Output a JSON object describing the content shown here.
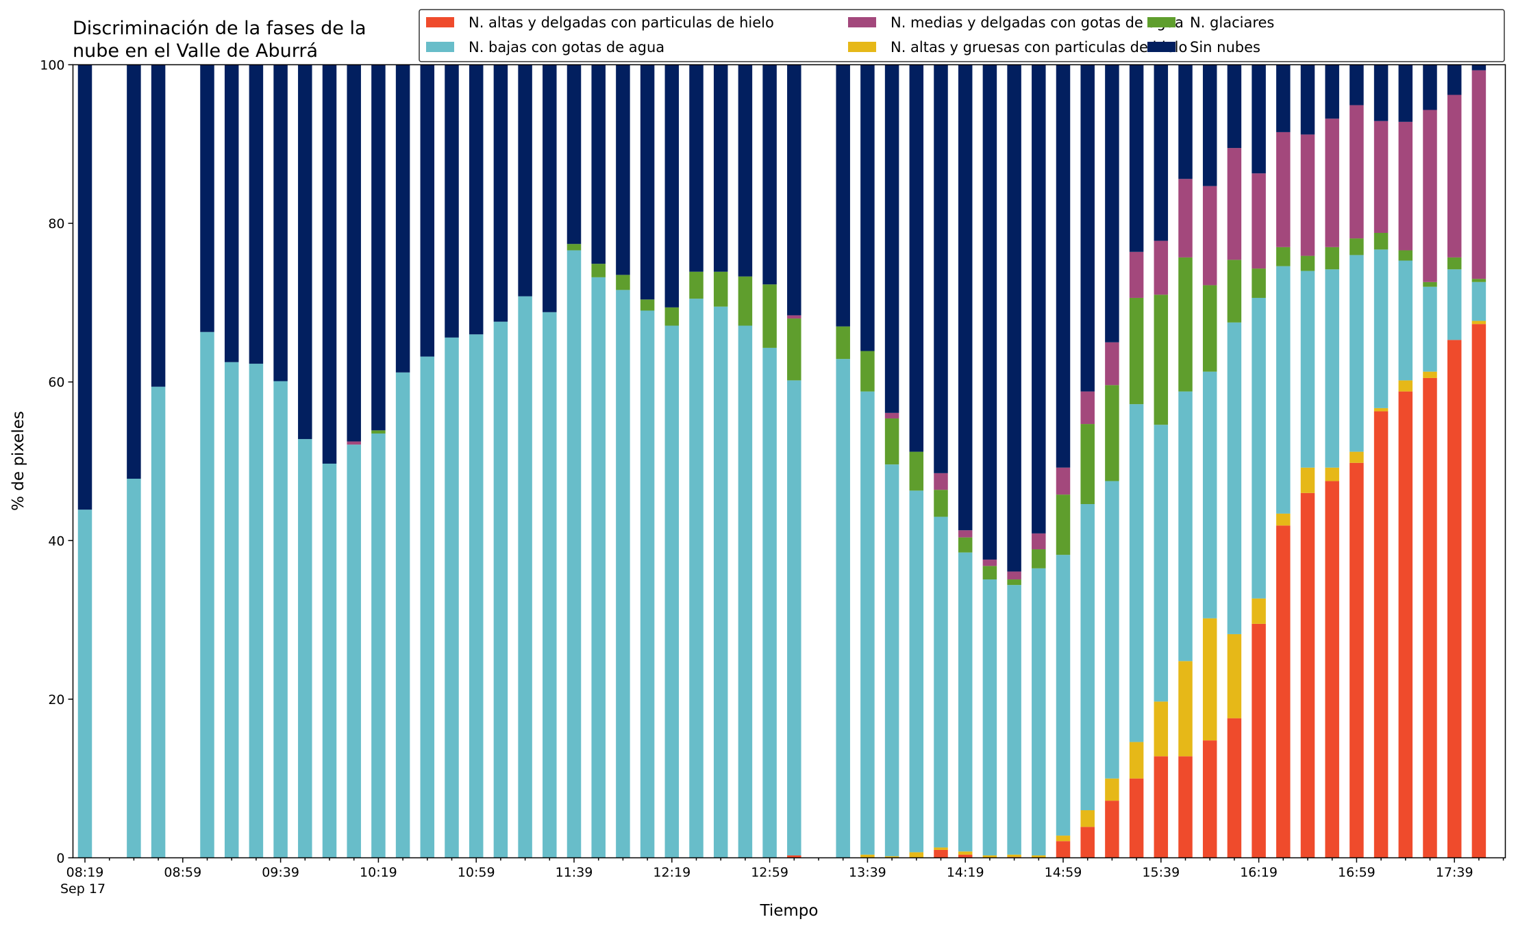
{
  "chart_data": {
    "type": "bar",
    "stacked": true,
    "title_lines": [
      "Discriminación de la fases de la",
      "nube en el Valle de Aburrá"
    ],
    "xlabel": "Tiempo",
    "ylabel": "% de pixeles",
    "ylim": [
      0,
      100
    ],
    "yticks": [
      0,
      20,
      40,
      60,
      80,
      100
    ],
    "x_step_minutes": 10,
    "x_start": "08:19",
    "x_end": "17:49",
    "date_label": "Sep 17",
    "xtick_labels": [
      "08:19",
      "08:59",
      "09:39",
      "10:19",
      "10:59",
      "11:39",
      "12:19",
      "12:59",
      "13:39",
      "14:19",
      "14:59",
      "15:39",
      "16:19",
      "16:59",
      "17:39"
    ],
    "legend_position": "top-right",
    "grid": false,
    "series": [
      {
        "name": "N. altas y delgadas con particulas de hielo",
        "color": "#ef4b2c"
      },
      {
        "name": "N. altas y gruesas con particulas de hielo",
        "color": "#e6b818"
      },
      {
        "name": "N. bajas con gotas de agua",
        "color": "#68bdc9"
      },
      {
        "name": "N. glaciares",
        "color": "#5f9e2d"
      },
      {
        "name": "N. medias y delgadas con gotas de agua",
        "color": "#a3487c"
      },
      {
        "name": "Sin nubes",
        "color": "#021f5f"
      }
    ],
    "legend_order": [
      0,
      2,
      4,
      1,
      3,
      5
    ],
    "bars": [
      {
        "time": "08:19",
        "values": [
          0,
          0,
          43.9,
          0,
          0,
          56.1
        ]
      },
      {
        "time": "08:39",
        "values": [
          0,
          0,
          47.8,
          0,
          0,
          52.2
        ]
      },
      {
        "time": "08:49",
        "values": [
          0,
          0,
          59.4,
          0,
          0,
          40.6
        ]
      },
      {
        "time": "09:09",
        "values": [
          0,
          0,
          66.3,
          0,
          0,
          33.7
        ]
      },
      {
        "time": "09:19",
        "values": [
          0,
          0,
          62.5,
          0,
          0,
          37.5
        ]
      },
      {
        "time": "09:29",
        "values": [
          0,
          0,
          62.3,
          0,
          0,
          37.7
        ]
      },
      {
        "time": "09:39",
        "values": [
          0,
          0,
          60.1,
          0,
          0,
          39.9
        ]
      },
      {
        "time": "09:49",
        "values": [
          0,
          0,
          52.8,
          0,
          0,
          47.2
        ]
      },
      {
        "time": "09:59",
        "values": [
          0,
          0,
          49.7,
          0,
          0,
          50.3
        ]
      },
      {
        "time": "10:09",
        "values": [
          0,
          0,
          52.1,
          0,
          0.4,
          47.5
        ]
      },
      {
        "time": "10:19",
        "values": [
          0,
          0,
          53.5,
          0.4,
          0,
          46.1
        ]
      },
      {
        "time": "10:29",
        "values": [
          0,
          0,
          61.2,
          0,
          0,
          38.8
        ]
      },
      {
        "time": "10:39",
        "values": [
          0,
          0,
          63.2,
          0,
          0,
          36.8
        ]
      },
      {
        "time": "10:49",
        "values": [
          0,
          0,
          65.6,
          0,
          0,
          34.4
        ]
      },
      {
        "time": "10:59",
        "values": [
          0,
          0,
          66.0,
          0,
          0,
          34.0
        ]
      },
      {
        "time": "11:09",
        "values": [
          0,
          0,
          67.6,
          0,
          0,
          32.4
        ]
      },
      {
        "time": "11:19",
        "values": [
          0,
          0,
          70.8,
          0,
          0,
          29.2
        ]
      },
      {
        "time": "11:29",
        "values": [
          0,
          0,
          68.8,
          0,
          0,
          31.2
        ]
      },
      {
        "time": "11:39",
        "values": [
          0,
          0,
          76.6,
          0.8,
          0,
          22.6
        ]
      },
      {
        "time": "11:49",
        "values": [
          0,
          0,
          73.2,
          1.7,
          0,
          25.1
        ]
      },
      {
        "time": "11:59",
        "values": [
          0,
          0,
          71.6,
          1.9,
          0,
          26.5
        ]
      },
      {
        "time": "12:09",
        "values": [
          0,
          0,
          69.0,
          1.4,
          0,
          29.6
        ]
      },
      {
        "time": "12:19",
        "values": [
          0,
          0,
          67.1,
          2.3,
          0,
          30.6
        ]
      },
      {
        "time": "12:29",
        "values": [
          0,
          0,
          70.5,
          3.4,
          0,
          26.1
        ]
      },
      {
        "time": "12:39",
        "values": [
          0,
          0,
          69.5,
          4.4,
          0,
          26.1
        ]
      },
      {
        "time": "12:49",
        "values": [
          0,
          0,
          67.1,
          6.2,
          0,
          26.7
        ]
      },
      {
        "time": "12:59",
        "values": [
          0,
          0,
          64.3,
          8.0,
          0,
          27.7
        ]
      },
      {
        "time": "13:09",
        "values": [
          0.3,
          0,
          59.9,
          7.8,
          0.4,
          31.6
        ]
      },
      {
        "time": "13:29",
        "values": [
          0,
          0,
          62.9,
          4.1,
          0,
          33.0
        ]
      },
      {
        "time": "13:39",
        "values": [
          0,
          0.4,
          58.4,
          5.1,
          0,
          36.1
        ]
      },
      {
        "time": "13:49",
        "values": [
          0,
          0.2,
          49.4,
          5.8,
          0.7,
          43.9
        ]
      },
      {
        "time": "13:59",
        "values": [
          0,
          0.7,
          45.6,
          4.9,
          0,
          48.8
        ]
      },
      {
        "time": "14:09",
        "values": [
          1.0,
          0.3,
          41.7,
          3.4,
          2.1,
          51.5
        ]
      },
      {
        "time": "14:19",
        "values": [
          0.4,
          0.4,
          37.7,
          1.9,
          0.9,
          58.7
        ]
      },
      {
        "time": "14:29",
        "values": [
          0,
          0.3,
          34.8,
          1.7,
          0.8,
          62.4
        ]
      },
      {
        "time": "14:39",
        "values": [
          0.1,
          0.3,
          34.0,
          0.7,
          1.0,
          63.9
        ]
      },
      {
        "time": "14:49",
        "values": [
          0,
          0.3,
          36.2,
          2.4,
          2.0,
          59.1
        ]
      },
      {
        "time": "14:59",
        "values": [
          2.1,
          0.7,
          35.4,
          7.6,
          3.4,
          50.8
        ]
      },
      {
        "time": "15:09",
        "values": [
          3.9,
          2.1,
          38.6,
          10.1,
          4.1,
          41.2
        ]
      },
      {
        "time": "15:19",
        "values": [
          7.2,
          2.8,
          37.5,
          12.1,
          5.4,
          35.0
        ]
      },
      {
        "time": "15:29",
        "values": [
          10.0,
          4.6,
          42.6,
          13.4,
          5.8,
          23.6
        ]
      },
      {
        "time": "15:39",
        "values": [
          12.8,
          6.9,
          34.9,
          16.4,
          6.8,
          22.2
        ]
      },
      {
        "time": "15:49",
        "values": [
          12.8,
          12.0,
          34.0,
          16.9,
          9.9,
          14.4
        ]
      },
      {
        "time": "15:59",
        "values": [
          14.8,
          15.4,
          31.1,
          10.9,
          12.5,
          15.3
        ]
      },
      {
        "time": "16:09",
        "values": [
          17.6,
          10.6,
          39.3,
          7.9,
          14.1,
          10.5
        ]
      },
      {
        "time": "16:19",
        "values": [
          29.5,
          3.2,
          37.9,
          3.7,
          12.0,
          13.7
        ]
      },
      {
        "time": "16:29",
        "values": [
          41.9,
          1.5,
          31.2,
          2.4,
          14.5,
          8.5
        ]
      },
      {
        "time": "16:39",
        "values": [
          46.0,
          3.2,
          24.8,
          1.9,
          15.3,
          8.8
        ]
      },
      {
        "time": "16:49",
        "values": [
          47.5,
          1.7,
          25.0,
          2.8,
          16.2,
          6.8
        ]
      },
      {
        "time": "16:59",
        "values": [
          49.8,
          1.4,
          24.8,
          2.1,
          16.8,
          5.1
        ]
      },
      {
        "time": "17:09",
        "values": [
          56.3,
          0.4,
          20.0,
          2.1,
          14.1,
          7.1
        ]
      },
      {
        "time": "17:19",
        "values": [
          58.8,
          1.4,
          15.1,
          1.3,
          16.2,
          7.2
        ]
      },
      {
        "time": "17:29",
        "values": [
          60.5,
          0.8,
          10.7,
          0.6,
          21.7,
          5.7
        ]
      },
      {
        "time": "17:39",
        "values": [
          65.3,
          0,
          8.9,
          1.5,
          20.5,
          3.8
        ]
      },
      {
        "time": "17:49",
        "values": [
          67.3,
          0.4,
          4.9,
          0.4,
          26.3,
          0.7
        ]
      }
    ]
  }
}
